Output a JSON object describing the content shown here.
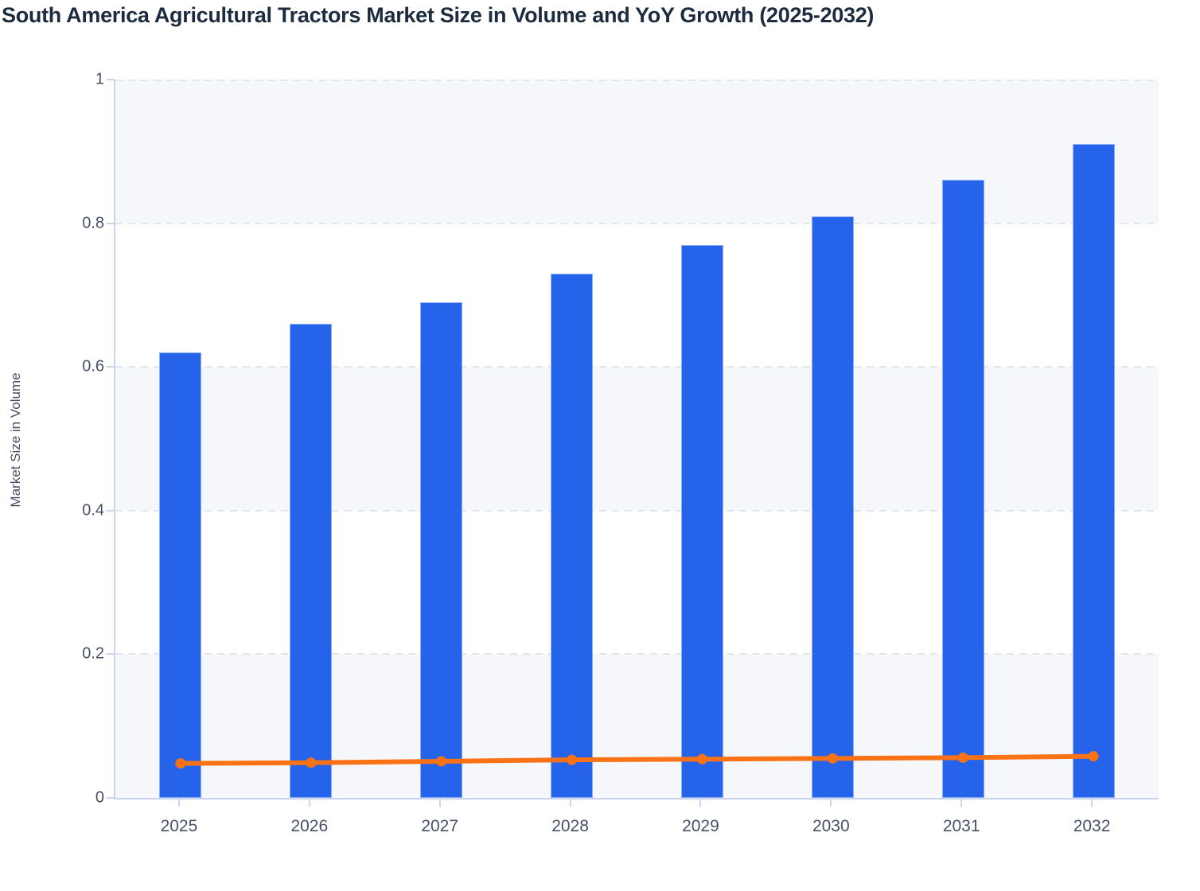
{
  "chart_data": {
    "type": "bar",
    "title": "South America Agricultural Tractors Market Size in Volume and YoY Growth (2025-2032)",
    "ylabel": "Market Size in Volume",
    "xlabel": "",
    "categories": [
      "2025",
      "2026",
      "2027",
      "2028",
      "2029",
      "2030",
      "2031",
      "2032"
    ],
    "series": [
      {
        "name": "Market Size in Volume",
        "type": "bar",
        "color": "#2563EB",
        "values": [
          0.62,
          0.66,
          0.69,
          0.73,
          0.77,
          0.81,
          0.86,
          0.91
        ]
      },
      {
        "name": "YoY Growth",
        "type": "line",
        "color": "#F97316",
        "values": [
          0.048,
          0.049,
          0.051,
          0.053,
          0.054,
          0.055,
          0.056,
          0.058
        ]
      }
    ],
    "ylim": [
      0,
      1
    ],
    "y_tick_values": [
      0,
      0.2,
      0.4,
      0.6,
      0.8,
      1
    ],
    "y_tick_labels": [
      "0",
      "0.2",
      "0.4",
      "0.6",
      "0.8",
      "1"
    ],
    "grid": "horizontal-dashed",
    "legend": "none",
    "band_colors": [
      "#f5f7fa",
      "#ffffff"
    ]
  },
  "colors": {
    "bar_fill": "#2563EB",
    "bar_stroke": "#8fb0f6",
    "line_stroke": "#F97316",
    "axis_line": "#c9d3ee",
    "gridline": "#e1e5ec",
    "band_gray": "#f5f7fa",
    "title_text": "#1d2b3f",
    "tick_text": "#475069"
  }
}
